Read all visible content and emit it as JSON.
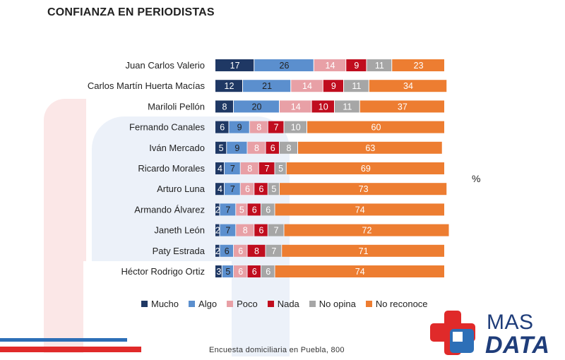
{
  "page_title": "CONFIANZA EN PERIODISTAS",
  "unit_label": "%",
  "footnote": "Encuesta domiciliaria en Puebla, 800",
  "logo": {
    "line1": "MAS",
    "line2": "DATA",
    "red": "#e02a2a",
    "blue": "#2d6fb7",
    "navy": "#1f3d7a"
  },
  "chart_data": {
    "type": "bar",
    "stacked": true,
    "orientation": "horizontal",
    "title": "CONFIANZA EN PERIODISTAS",
    "xlabel": "",
    "ylabel": "",
    "xlim": [
      0,
      100
    ],
    "legend_position": "bottom",
    "categories": [
      "Juan Carlos Valerio",
      "Carlos Martín Huerta Macías",
      "Mariloli Pellón",
      "Fernando Canales",
      "Iván Mercado",
      "Ricardo Morales",
      "Arturo Luna",
      "Armando Álvarez",
      "Janeth León",
      "Paty Estrada",
      "Héctor Rodrigo Ortiz"
    ],
    "series": [
      {
        "name": "Mucho",
        "color": "#1f3864",
        "label_color": "#ffffff",
        "values": [
          17,
          12,
          8,
          6,
          5,
          4,
          4,
          2,
          2,
          2,
          3
        ]
      },
      {
        "name": "Algo",
        "color": "#5b8fce",
        "label_color": "#222222",
        "values": [
          26,
          21,
          20,
          9,
          9,
          7,
          7,
          7,
          7,
          6,
          5
        ]
      },
      {
        "name": "Poco",
        "color": "#e8a0a6",
        "label_color": "#ffffff",
        "values": [
          14,
          14,
          14,
          8,
          8,
          8,
          6,
          5,
          8,
          6,
          6
        ]
      },
      {
        "name": "Nada",
        "color": "#c00d1e",
        "label_color": "#ffffff",
        "values": [
          9,
          9,
          10,
          7,
          6,
          7,
          6,
          6,
          6,
          8,
          6
        ]
      },
      {
        "name": "No opina",
        "color": "#a6a6a6",
        "label_color": "#ffffff",
        "values": [
          11,
          11,
          11,
          10,
          8,
          5,
          5,
          6,
          7,
          7,
          6
        ]
      },
      {
        "name": "No reconoce",
        "color": "#ed7d31",
        "label_color": "#ffffff",
        "values": [
          23,
          34,
          37,
          60,
          63,
          69,
          73,
          74,
          72,
          71,
          74
        ]
      }
    ]
  }
}
